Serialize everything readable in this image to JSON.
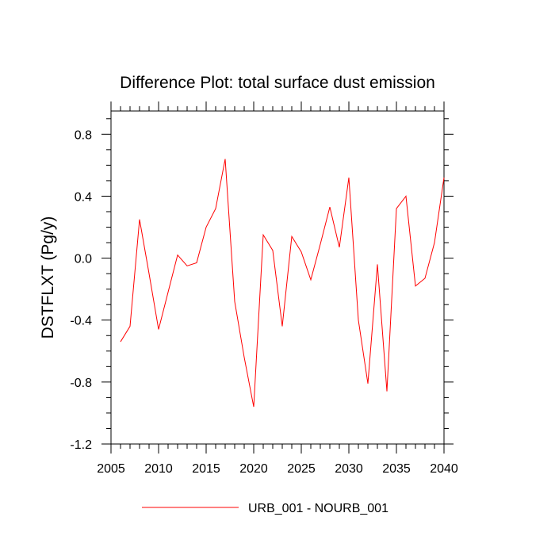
{
  "chart_data": {
    "type": "line",
    "title": "Difference Plot: total surface dust emission",
    "xlabel": "",
    "ylabel": "DSTFLXT  (Pg/y)",
    "xlim": [
      2005,
      2040
    ],
    "ylim": [
      -1.2,
      0.95
    ],
    "xticks": [
      2005,
      2010,
      2015,
      2020,
      2025,
      2030,
      2035,
      2040
    ],
    "xtick_labels": [
      "2005",
      "2010",
      "2015",
      "2020",
      "2025",
      "2030",
      "2035",
      "2040"
    ],
    "yticks": [
      -1.2,
      -0.8,
      -0.4,
      0.0,
      0.4,
      0.8
    ],
    "ytick_labels": [
      "-1.2",
      "-0.8",
      "-0.4",
      "0.0",
      "0.4",
      "0.8"
    ],
    "grid": false,
    "legend_position": "bottom",
    "series": [
      {
        "name": "URB_001 - NOURB_001",
        "color": "#ff0000",
        "x": [
          2006,
          2007,
          2008,
          2009,
          2010,
          2011,
          2012,
          2013,
          2014,
          2015,
          2016,
          2017,
          2018,
          2019,
          2020,
          2021,
          2022,
          2023,
          2024,
          2025,
          2026,
          2027,
          2028,
          2029,
          2030,
          2031,
          2032,
          2033,
          2034,
          2035,
          2036,
          2037,
          2038,
          2039,
          2040
        ],
        "values": [
          -0.54,
          -0.44,
          0.25,
          -0.1,
          -0.46,
          -0.22,
          0.02,
          -0.05,
          -0.03,
          0.2,
          0.32,
          0.64,
          -0.28,
          -0.64,
          -0.96,
          0.15,
          0.05,
          -0.44,
          0.14,
          0.04,
          -0.14,
          0.09,
          0.33,
          0.07,
          0.52,
          -0.4,
          -0.81,
          -0.04,
          -0.86,
          0.32,
          0.4,
          -0.18,
          -0.13,
          0.1,
          0.52
        ]
      }
    ]
  }
}
